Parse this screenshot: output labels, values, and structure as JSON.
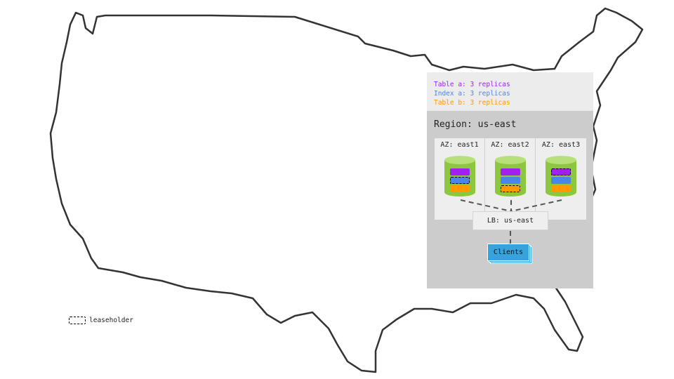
{
  "legend": {
    "items": [
      {
        "label": "Table a: 3 replicas",
        "color": "#a020f0"
      },
      {
        "label": "Index a: 3 replicas",
        "color": "#4a86e8"
      },
      {
        "label": "Table b: 3 replicas",
        "color": "#ff9900"
      }
    ]
  },
  "region": {
    "label": "Region: us-east"
  },
  "azs": [
    {
      "label": "AZ: east1",
      "leaseholder": "index-a"
    },
    {
      "label": "AZ: east2",
      "leaseholder": "table-b"
    },
    {
      "label": "AZ: east3",
      "leaseholder": "table-a"
    }
  ],
  "load_balancer": {
    "label": "LB: us-east"
  },
  "clients": {
    "label": "Clients"
  },
  "leaseholder_key": {
    "label": "leaseholder"
  },
  "colors": {
    "node": "#8dc63f",
    "clients": "#36a3dc",
    "region": "#cccccc"
  }
}
